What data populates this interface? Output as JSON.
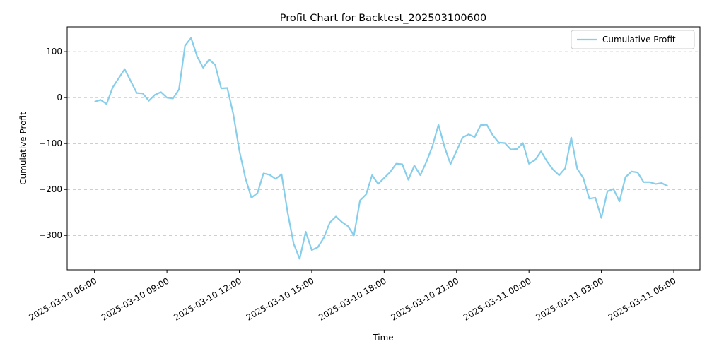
{
  "chart_data": {
    "type": "line",
    "title": "Profit Chart for Backtest_202503100600",
    "x_label": "Time",
    "y_label": "Cumulative Profit",
    "x": [
      "2025-03-10 06:00",
      "2025-03-10 06:15",
      "2025-03-10 06:30",
      "2025-03-10 06:45",
      "2025-03-10 07:00",
      "2025-03-10 07:15",
      "2025-03-10 07:30",
      "2025-03-10 07:45",
      "2025-03-10 08:00",
      "2025-03-10 08:15",
      "2025-03-10 08:30",
      "2025-03-10 08:45",
      "2025-03-10 09:00",
      "2025-03-10 09:15",
      "2025-03-10 09:30",
      "2025-03-10 09:45",
      "2025-03-10 10:00",
      "2025-03-10 10:15",
      "2025-03-10 10:30",
      "2025-03-10 10:45",
      "2025-03-10 11:00",
      "2025-03-10 11:15",
      "2025-03-10 11:30",
      "2025-03-10 11:45",
      "2025-03-10 12:00",
      "2025-03-10 12:15",
      "2025-03-10 12:30",
      "2025-03-10 12:45",
      "2025-03-10 13:00",
      "2025-03-10 13:15",
      "2025-03-10 13:30",
      "2025-03-10 13:45",
      "2025-03-10 14:00",
      "2025-03-10 14:15",
      "2025-03-10 14:30",
      "2025-03-10 14:45",
      "2025-03-10 15:00",
      "2025-03-10 15:15",
      "2025-03-10 15:30",
      "2025-03-10 15:45",
      "2025-03-10 16:00",
      "2025-03-10 16:15",
      "2025-03-10 16:30",
      "2025-03-10 16:45",
      "2025-03-10 17:00",
      "2025-03-10 17:15",
      "2025-03-10 17:30",
      "2025-03-10 17:45",
      "2025-03-10 18:00",
      "2025-03-10 18:15",
      "2025-03-10 18:30",
      "2025-03-10 18:45",
      "2025-03-10 19:00",
      "2025-03-10 19:15",
      "2025-03-10 19:30",
      "2025-03-10 19:45",
      "2025-03-10 20:00",
      "2025-03-10 20:15",
      "2025-03-10 20:30",
      "2025-03-10 20:45",
      "2025-03-10 21:00",
      "2025-03-10 21:15",
      "2025-03-10 21:30",
      "2025-03-10 21:45",
      "2025-03-10 22:00",
      "2025-03-10 22:15",
      "2025-03-10 22:30",
      "2025-03-10 22:45",
      "2025-03-10 23:00",
      "2025-03-10 23:15",
      "2025-03-10 23:30",
      "2025-03-10 23:45",
      "2025-03-11 00:00",
      "2025-03-11 00:15",
      "2025-03-11 00:30",
      "2025-03-11 00:45",
      "2025-03-11 01:00",
      "2025-03-11 01:15",
      "2025-03-11 01:30",
      "2025-03-11 01:45",
      "2025-03-11 02:00",
      "2025-03-11 02:15",
      "2025-03-11 02:30",
      "2025-03-11 02:45",
      "2025-03-11 03:00",
      "2025-03-11 03:15",
      "2025-03-11 03:30",
      "2025-03-11 03:45",
      "2025-03-11 04:00",
      "2025-03-11 04:15",
      "2025-03-11 04:30",
      "2025-03-11 04:45",
      "2025-03-11 05:00",
      "2025-03-11 05:15",
      "2025-03-11 05:30",
      "2025-03-11 05:45"
    ],
    "series": [
      {
        "name": "Cumulative Profit",
        "color": "#87ceeb",
        "values": [
          -9,
          -5,
          -14,
          22,
          42,
          62,
          36,
          10,
          9,
          -7,
          6,
          12,
          0,
          -2,
          18,
          113,
          130,
          90,
          65,
          83,
          71,
          20,
          21,
          -36,
          -115,
          -175,
          -218,
          -208,
          -165,
          -168,
          -177,
          -167,
          -250,
          -318,
          -351,
          -292,
          -332,
          -326,
          -305,
          -272,
          -259,
          -271,
          -280,
          -300,
          -224,
          -211,
          -169,
          -188,
          -175,
          -162,
          -144,
          -145,
          -179,
          -148,
          -169,
          -140,
          -106,
          -59,
          -107,
          -145,
          -116,
          -87,
          -80,
          -86,
          -60,
          -59,
          -82,
          -98,
          -99,
          -113,
          -112,
          -99,
          -144,
          -136,
          -117,
          -139,
          -157,
          -169,
          -154,
          -87,
          -155,
          -175,
          -220,
          -218,
          -262,
          -204,
          -199,
          -226,
          -173,
          -161,
          -163,
          -184,
          -184,
          -188,
          -186,
          -193
        ]
      }
    ],
    "xlim": [
      "2025-03-10 04:52",
      "2025-03-11 07:05"
    ],
    "xticks": [
      "2025-03-10 06:00",
      "2025-03-10 09:00",
      "2025-03-10 12:00",
      "2025-03-10 15:00",
      "2025-03-10 18:00",
      "2025-03-10 21:00",
      "2025-03-11 00:00",
      "2025-03-11 03:00",
      "2025-03-11 06:00"
    ],
    "ylim": [
      -375,
      154
    ],
    "yticks": [
      {
        "value": -300,
        "label": "−300"
      },
      {
        "value": -200,
        "label": "−200"
      },
      {
        "value": -100,
        "label": "−100"
      },
      0,
      100
    ],
    "grid": true,
    "legend": "upper right"
  }
}
